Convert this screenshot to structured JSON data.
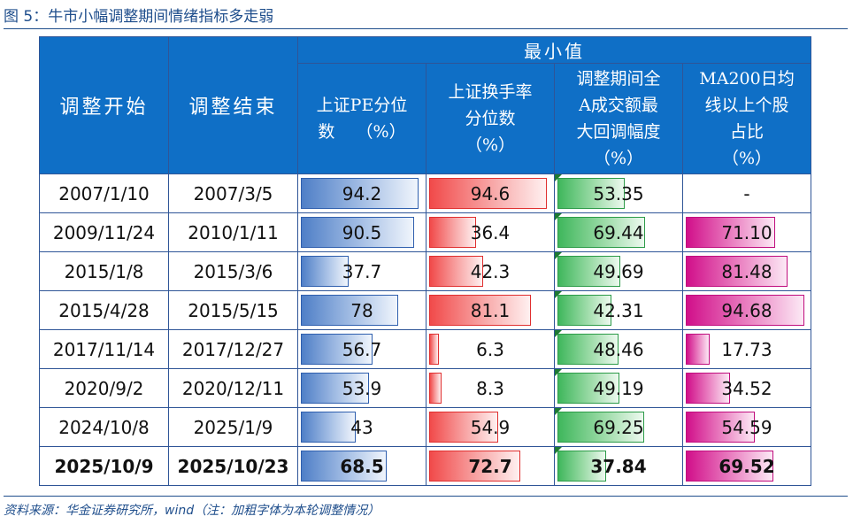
{
  "figure": {
    "title": "图 5：牛市小幅调整期间情绪指标多走弱",
    "source": "资料来源：华金证券研究所，wind（注：加粗字体为本轮调整情况）"
  },
  "table": {
    "headers": {
      "start": "调整开始",
      "end": "调整结束",
      "group": "最小值",
      "pe": [
        "上证PE分位",
        "数    （%）"
      ],
      "turnover": [
        "上证换手率",
        "分位数",
        "（%）"
      ],
      "drawdown": [
        "调整期间全",
        "A成交额最",
        "大回调幅度",
        "（%）"
      ],
      "ma200": [
        "MA200日均",
        "线以上个股",
        "占比",
        "（%）"
      ]
    },
    "rows": [
      {
        "start": "2007/1/10",
        "end": "2007/3/5",
        "pe": "94.2",
        "turnover": "94.6",
        "drawdown": "53.35",
        "ma200": "-",
        "bold": false
      },
      {
        "start": "2009/11/24",
        "end": "2010/1/11",
        "pe": "90.5",
        "turnover": "36.4",
        "drawdown": "69.44",
        "ma200": "71.10",
        "bold": false
      },
      {
        "start": "2015/1/8",
        "end": "2015/3/6",
        "pe": "37.7",
        "turnover": "42.3",
        "drawdown": "49.69",
        "ma200": "81.48",
        "bold": false
      },
      {
        "start": "2015/4/28",
        "end": "2015/5/15",
        "pe": "78",
        "turnover": "81.1",
        "drawdown": "42.31",
        "ma200": "94.68",
        "bold": false
      },
      {
        "start": "2017/11/14",
        "end": "2017/12/27",
        "pe": "56.7",
        "turnover": "6.3",
        "drawdown": "48.46",
        "ma200": "17.73",
        "bold": false
      },
      {
        "start": "2020/9/2",
        "end": "2020/12/11",
        "pe": "53.9",
        "turnover": "8.3",
        "drawdown": "49.19",
        "ma200": "34.52",
        "bold": false
      },
      {
        "start": "2024/10/8",
        "end": "2025/1/9",
        "pe": "43",
        "turnover": "54.9",
        "drawdown": "69.25",
        "ma200": "54.59",
        "bold": false
      },
      {
        "start": "2025/10/9",
        "end": "2025/10/23",
        "pe": "68.5",
        "turnover": "72.7",
        "drawdown": "37.84",
        "ma200": "69.52",
        "bold": true
      }
    ]
  },
  "colors": {
    "header_bg": "#0f6fc6",
    "pe_bar": "#4f7fc7",
    "turnover_bar": "#f14a4a",
    "drawdown_bar": "#3fb75c",
    "ma200_bar": "#d10f8a"
  }
}
